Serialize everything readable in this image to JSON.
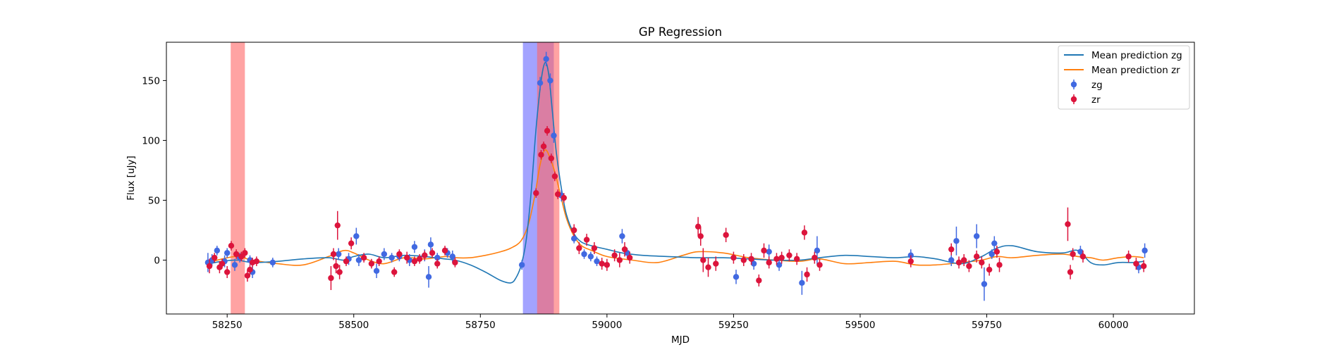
{
  "chart_data": {
    "type": "scatter",
    "title": "GP Regression",
    "xlabel": "MJD",
    "ylabel": "Flux [uJy]",
    "xlim": [
      58130,
      60160
    ],
    "ylim": [
      -45,
      182
    ],
    "xticks": [
      58250,
      58500,
      58750,
      59000,
      59250,
      59500,
      59750,
      60000
    ],
    "yticks": [
      0,
      50,
      100,
      150
    ],
    "legend_position": "upper right",
    "legend": [
      {
        "label": "Mean prediction zg",
        "kind": "line",
        "color": "#1f77b4"
      },
      {
        "label": "Mean prediction zr",
        "kind": "line",
        "color": "#ff7f0e"
      },
      {
        "label": "zg",
        "kind": "errorbar",
        "color": "#4169e1"
      },
      {
        "label": "zr",
        "kind": "errorbar",
        "color": "#dc143c"
      }
    ],
    "shaded_regions": [
      {
        "x0": 58257,
        "x1": 58285,
        "color": "#ff6666",
        "opacity": 0.6
      },
      {
        "x0": 58834,
        "x1": 58895,
        "color": "#6666ff",
        "opacity": 0.6
      },
      {
        "x0": 58862,
        "x1": 58906,
        "color": "#ff6666",
        "opacity": 0.6
      }
    ],
    "mean_prediction_zg": {
      "color": "#1f77b4",
      "x": [
        58215,
        58240,
        58270,
        58300,
        58350,
        58400,
        58450,
        58480,
        58500,
        58530,
        58560,
        58600,
        58640,
        58680,
        58700,
        58730,
        58760,
        58790,
        58810,
        58820,
        58830,
        58840,
        58850,
        58860,
        58870,
        58878,
        58885,
        58892,
        58900,
        58910,
        58920,
        58935,
        58950,
        58970,
        59000,
        59030,
        59070,
        59120,
        59180,
        59230,
        59280,
        59330,
        59380,
        59420,
        59470,
        59520,
        59570,
        59610,
        59650,
        59700,
        59740,
        59770,
        59800,
        59850,
        59900,
        59930,
        59955,
        59980,
        60010,
        60040,
        60060
      ],
      "y": [
        -3,
        -1,
        0,
        -2,
        -1,
        1,
        2,
        0,
        3,
        5,
        2,
        4,
        3,
        1,
        0,
        -4,
        -10,
        -17,
        -19,
        -15,
        -5,
        15,
        55,
        110,
        150,
        165,
        155,
        125,
        90,
        60,
        38,
        22,
        15,
        12,
        9,
        6,
        4,
        3,
        2,
        2,
        1,
        0,
        0,
        2,
        4,
        3,
        2,
        3,
        1,
        -3,
        3,
        10,
        12,
        7,
        6,
        8,
        -2,
        -4,
        -2,
        -2,
        -1
      ]
    },
    "mean_prediction_zr": {
      "color": "#ff7f0e",
      "x": [
        58215,
        58240,
        58270,
        58300,
        58350,
        58400,
        58450,
        58480,
        58500,
        58530,
        58560,
        58600,
        58640,
        58680,
        58700,
        58730,
        58760,
        58790,
        58810,
        58830,
        58845,
        58858,
        58868,
        58878,
        58888,
        58898,
        58908,
        58920,
        58935,
        58950,
        58970,
        59000,
        59050,
        59100,
        59150,
        59180,
        59230,
        59280,
        59330,
        59380,
        59420,
        59470,
        59520,
        59570,
        59610,
        59650,
        59700,
        59740,
        59770,
        59800,
        59850,
        59900,
        59930,
        59955,
        59980,
        60010,
        60040,
        60060
      ],
      "y": [
        -2,
        1,
        3,
        0,
        -3,
        -4,
        3,
        8,
        6,
        0,
        -3,
        2,
        1,
        3,
        2,
        2,
        4,
        7,
        10,
        16,
        30,
        55,
        80,
        92,
        85,
        72,
        55,
        35,
        20,
        12,
        8,
        3,
        0,
        -2,
        4,
        7,
        6,
        2,
        0,
        -1,
        1,
        -3,
        -2,
        -1,
        -4,
        -4,
        -2,
        0,
        3,
        2,
        4,
        5,
        3,
        2,
        0,
        2,
        3,
        2
      ]
    },
    "zg": {
      "color": "#4169e1",
      "points": [
        [
          58212,
          -2,
          8
        ],
        [
          58220,
          0,
          5
        ],
        [
          58230,
          8,
          4
        ],
        [
          58245,
          -1,
          5
        ],
        [
          58250,
          6,
          4
        ],
        [
          58265,
          -4,
          5
        ],
        [
          58275,
          2,
          4
        ],
        [
          58295,
          0,
          4
        ],
        [
          58300,
          -10,
          5
        ],
        [
          58340,
          -2,
          4
        ],
        [
          58470,
          5,
          5
        ],
        [
          58490,
          1,
          5
        ],
        [
          58505,
          20,
          7
        ],
        [
          58510,
          0,
          5
        ],
        [
          58545,
          -9,
          6
        ],
        [
          58560,
          5,
          5
        ],
        [
          58575,
          2,
          4
        ],
        [
          58590,
          3,
          4
        ],
        [
          58610,
          0,
          5
        ],
        [
          58620,
          11,
          5
        ],
        [
          58640,
          4,
          5
        ],
        [
          58648,
          -14,
          9
        ],
        [
          58652,
          13,
          6
        ],
        [
          58665,
          2,
          4
        ],
        [
          58685,
          6,
          4
        ],
        [
          58695,
          3,
          5
        ],
        [
          58832,
          -4,
          4
        ],
        [
          58868,
          148,
          5
        ],
        [
          58880,
          168,
          6
        ],
        [
          58888,
          150,
          6
        ],
        [
          58895,
          104,
          6
        ],
        [
          58910,
          54,
          5
        ],
        [
          58935,
          18,
          4
        ],
        [
          58955,
          5,
          4
        ],
        [
          58968,
          3,
          4
        ],
        [
          58980,
          -1,
          4
        ],
        [
          59030,
          20,
          6
        ],
        [
          59040,
          6,
          4
        ],
        [
          59255,
          -14,
          6
        ],
        [
          59290,
          -3,
          5
        ],
        [
          59320,
          7,
          6
        ],
        [
          59340,
          -4,
          5
        ],
        [
          59385,
          -19,
          10
        ],
        [
          59415,
          8,
          12
        ],
        [
          59600,
          4,
          5
        ],
        [
          59680,
          0,
          5
        ],
        [
          59690,
          16,
          12
        ],
        [
          59730,
          20,
          10
        ],
        [
          59745,
          -20,
          14
        ],
        [
          59760,
          5,
          4
        ],
        [
          59765,
          14,
          6
        ],
        [
          59935,
          7,
          5
        ],
        [
          60050,
          -6,
          5
        ],
        [
          60062,
          8,
          6
        ]
      ]
    },
    "zr": {
      "color": "#dc143c",
      "points": [
        [
          58215,
          -5,
          6
        ],
        [
          58225,
          2,
          4
        ],
        [
          58235,
          -6,
          5
        ],
        [
          58240,
          -3,
          4
        ],
        [
          58250,
          -10,
          5
        ],
        [
          58258,
          12,
          4
        ],
        [
          58268,
          5,
          4
        ],
        [
          58278,
          3,
          4
        ],
        [
          58285,
          6,
          4
        ],
        [
          58290,
          -13,
          5
        ],
        [
          58295,
          -8,
          4
        ],
        [
          58300,
          -2,
          4
        ],
        [
          58308,
          -1,
          4
        ],
        [
          58455,
          -15,
          10
        ],
        [
          58460,
          5,
          5
        ],
        [
          58465,
          -5,
          6
        ],
        [
          58468,
          29,
          12
        ],
        [
          58472,
          -10,
          6
        ],
        [
          58485,
          -1,
          4
        ],
        [
          58495,
          14,
          5
        ],
        [
          58520,
          2,
          4
        ],
        [
          58535,
          -3,
          4
        ],
        [
          58550,
          -1,
          4
        ],
        [
          58580,
          -10,
          4
        ],
        [
          58590,
          5,
          4
        ],
        [
          58605,
          2,
          5
        ],
        [
          58620,
          -1,
          4
        ],
        [
          58630,
          1,
          4
        ],
        [
          58640,
          4,
          4
        ],
        [
          58655,
          6,
          4
        ],
        [
          58665,
          -3,
          4
        ],
        [
          58680,
          8,
          4
        ],
        [
          58700,
          -2,
          4
        ],
        [
          58860,
          56,
          4
        ],
        [
          58870,
          88,
          4
        ],
        [
          58875,
          95,
          4
        ],
        [
          58882,
          108,
          4
        ],
        [
          58890,
          85,
          4
        ],
        [
          58897,
          70,
          4
        ],
        [
          58903,
          55,
          4
        ],
        [
          58915,
          52,
          4
        ],
        [
          58935,
          25,
          5
        ],
        [
          58945,
          10,
          5
        ],
        [
          58960,
          17,
          5
        ],
        [
          58975,
          10,
          5
        ],
        [
          58990,
          -3,
          5
        ],
        [
          59000,
          -4,
          5
        ],
        [
          59015,
          4,
          5
        ],
        [
          59025,
          0,
          6
        ],
        [
          59035,
          9,
          6
        ],
        [
          59045,
          2,
          5
        ],
        [
          59180,
          28,
          8
        ],
        [
          59185,
          20,
          8
        ],
        [
          59190,
          0,
          10
        ],
        [
          59200,
          -6,
          8
        ],
        [
          59215,
          -3,
          6
        ],
        [
          59235,
          21,
          6
        ],
        [
          59250,
          2,
          5
        ],
        [
          59270,
          0,
          5
        ],
        [
          59285,
          1,
          5
        ],
        [
          59300,
          -17,
          5
        ],
        [
          59310,
          8,
          6
        ],
        [
          59320,
          -2,
          5
        ],
        [
          59335,
          1,
          5
        ],
        [
          59345,
          2,
          5
        ],
        [
          59360,
          4,
          5
        ],
        [
          59375,
          1,
          5
        ],
        [
          59390,
          23,
          6
        ],
        [
          59395,
          -12,
          6
        ],
        [
          59410,
          2,
          5
        ],
        [
          59420,
          -4,
          5
        ],
        [
          59600,
          -1,
          5
        ],
        [
          59680,
          9,
          5
        ],
        [
          59695,
          -2,
          5
        ],
        [
          59705,
          0,
          5
        ],
        [
          59715,
          -5,
          5
        ],
        [
          59730,
          3,
          5
        ],
        [
          59740,
          -2,
          5
        ],
        [
          59755,
          -8,
          5
        ],
        [
          59770,
          7,
          5
        ],
        [
          59775,
          -4,
          6
        ],
        [
          59910,
          30,
          14
        ],
        [
          59915,
          -10,
          6
        ],
        [
          59920,
          5,
          5
        ],
        [
          59940,
          3,
          5
        ],
        [
          60030,
          3,
          5
        ],
        [
          60045,
          -3,
          5
        ],
        [
          60060,
          -5,
          5
        ]
      ]
    }
  }
}
